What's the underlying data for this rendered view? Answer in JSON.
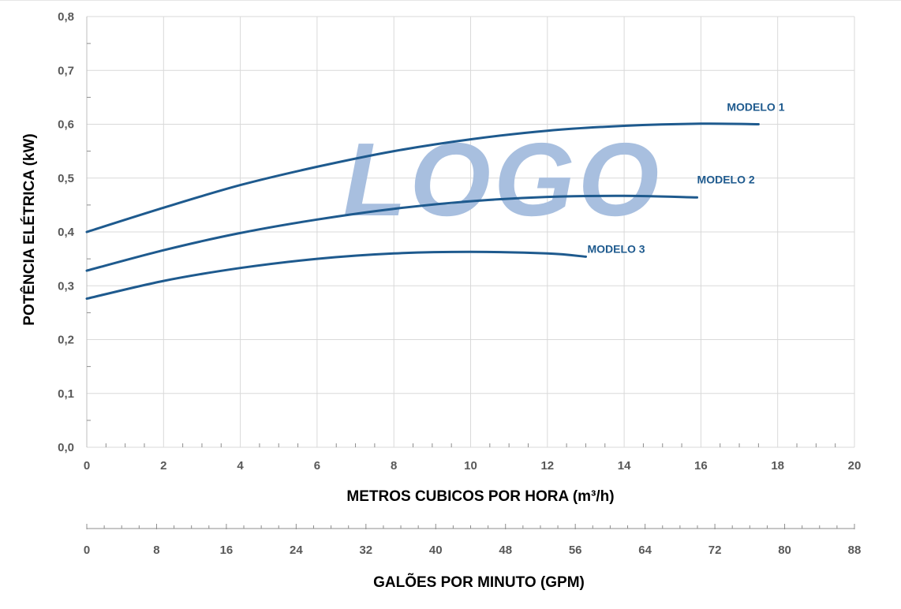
{
  "chart_data": {
    "type": "line",
    "title": "",
    "xlabel": "METROS CUBICOS POR HORA (m³/h)",
    "ylabel": "POTÊNCIA ELÉTRICA (kW)",
    "xlim": [
      0,
      20
    ],
    "ylim": [
      0,
      0.8
    ],
    "x_ticks": [
      "0",
      "2",
      "4",
      "6",
      "8",
      "10",
      "12",
      "14",
      "16",
      "18",
      "20"
    ],
    "y_ticks": [
      "0,0",
      "0,1",
      "0,2",
      "0,3",
      "0,4",
      "0,5",
      "0,6",
      "0,7",
      "0,8"
    ],
    "grid": true,
    "secondary_x_axis": {
      "label": "GALÕES POR MINUTO (GPM)",
      "range": [
        0,
        88
      ],
      "ticks": [
        "0",
        "8",
        "16",
        "24",
        "32",
        "40",
        "48",
        "56",
        "64",
        "72",
        "80",
        "88"
      ]
    },
    "series": [
      {
        "name": "MODELO 1",
        "x": [
          0,
          2,
          4,
          6,
          8,
          10,
          12,
          14,
          16,
          17.5
        ],
        "y": [
          0.4,
          0.445,
          0.487,
          0.521,
          0.55,
          0.572,
          0.588,
          0.597,
          0.601,
          0.6
        ]
      },
      {
        "name": "MODELO 2",
        "x": [
          0,
          2,
          4,
          6,
          8,
          10,
          12,
          14,
          15.9
        ],
        "y": [
          0.328,
          0.366,
          0.398,
          0.423,
          0.443,
          0.457,
          0.465,
          0.467,
          0.464
        ]
      },
      {
        "name": "MODELO 3",
        "x": [
          0,
          2,
          4,
          6,
          8,
          10,
          12,
          13
        ],
        "y": [
          0.276,
          0.309,
          0.333,
          0.35,
          0.36,
          0.363,
          0.36,
          0.354
        ]
      }
    ],
    "watermark": "LOGO"
  },
  "colors": {
    "series": "#1e5a8e",
    "grid": "#d9d9d9",
    "watermark": "#a8bfdf"
  }
}
